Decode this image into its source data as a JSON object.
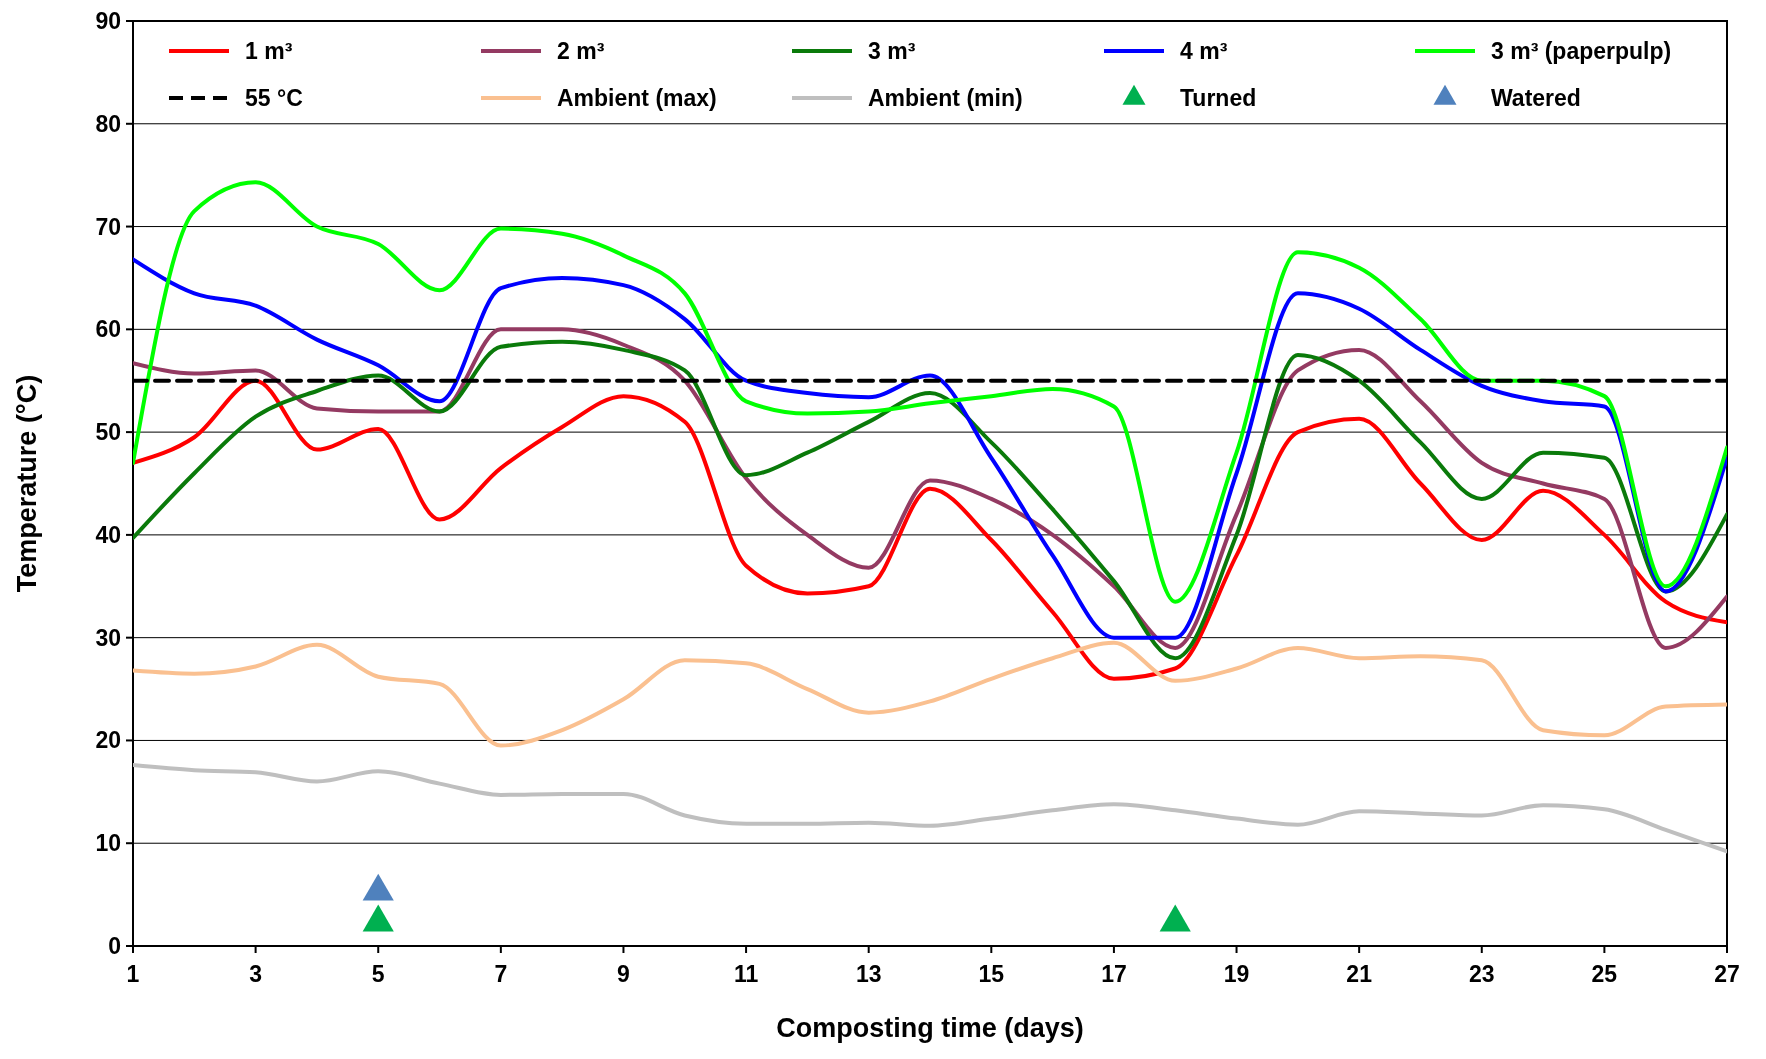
{
  "chart_data": {
    "type": "line",
    "xlabel": "Composting time (days)",
    "ylabel": "Temperature (°C)",
    "x": [
      1,
      2,
      3,
      4,
      5,
      6,
      7,
      8,
      9,
      10,
      11,
      12,
      13,
      14,
      15,
      16,
      17,
      18,
      19,
      20,
      21,
      22,
      23,
      24,
      25,
      26,
      27
    ],
    "xlim": [
      1,
      27
    ],
    "xticks": [
      1,
      3,
      5,
      7,
      9,
      11,
      13,
      15,
      17,
      19,
      21,
      23,
      25,
      27
    ],
    "ylim": [
      0,
      90
    ],
    "yticks": [
      0,
      10,
      20,
      30,
      40,
      50,
      60,
      70,
      80,
      90
    ],
    "grid": "y",
    "legend": "top",
    "series": [
      {
        "name": "1 m³",
        "color": "#ff0000",
        "values": [
          47,
          49.5,
          55,
          48.3,
          50.3,
          41.5,
          46.5,
          50.5,
          53.5,
          51,
          37,
          34.3,
          35,
          44.5,
          39.5,
          32.5,
          26,
          27,
          38,
          50,
          51.3,
          45,
          39.5,
          44.3,
          40,
          33.5,
          31.5
        ]
      },
      {
        "name": "2 m³",
        "color": "#943a62",
        "values": [
          56.7,
          55.7,
          56,
          52.3,
          52,
          52,
          60,
          60,
          58.5,
          55,
          45.5,
          40,
          36.8,
          45.3,
          43.5,
          40,
          35,
          29,
          42,
          56,
          58,
          53,
          47,
          45,
          43.5,
          29,
          34
        ]
      },
      {
        "name": "3 m³",
        "color": "#0a7a0a",
        "values": [
          39.7,
          46,
          51.5,
          54,
          55.5,
          52,
          58.3,
          58.8,
          58,
          56,
          45.8,
          48,
          51,
          53.8,
          49,
          42.5,
          35.5,
          28,
          40,
          57.5,
          55,
          49,
          43.5,
          48,
          47.5,
          34.5,
          42
        ]
      },
      {
        "name": "4 m³",
        "color": "#0000ff",
        "values": [
          66.8,
          63.5,
          62.3,
          59,
          56.5,
          53,
          64,
          65,
          64.3,
          61,
          55,
          53.8,
          53.4,
          55.5,
          47.5,
          38,
          30,
          30,
          46,
          63.5,
          62,
          58,
          54.5,
          53,
          52.5,
          34.5,
          47.5
        ]
      },
      {
        "name": "3 m³ (paperpulp)",
        "color": "#00ff00",
        "values": [
          47,
          71.5,
          74.3,
          70,
          68.3,
          63.8,
          69.8,
          69.3,
          67.2,
          63.5,
          53,
          51.8,
          52,
          52.8,
          53.5,
          54.2,
          52.5,
          33.5,
          48,
          67.5,
          66,
          61,
          55,
          55,
          53.5,
          35,
          48.5
        ]
      },
      {
        "name": "55 °C",
        "color": "#000000",
        "line_style": "dashed",
        "x": [
          1,
          27
        ],
        "values": [
          55,
          55
        ]
      },
      {
        "name": "Ambient (max)",
        "color": "#fac090",
        "values": [
          26.8,
          26.5,
          27.2,
          29.3,
          26.2,
          25.5,
          19.5,
          21,
          24,
          27.8,
          27.5,
          25,
          22.7,
          23.8,
          26,
          28,
          29.5,
          25.8,
          27,
          29,
          28,
          28.2,
          27.8,
          21,
          20.5,
          23.3,
          23.5
        ]
      },
      {
        "name": "Ambient (min)",
        "color": "#bfbfbf",
        "values": [
          17.6,
          17.1,
          16.9,
          16,
          17,
          15.8,
          14.7,
          14.8,
          14.8,
          12.7,
          11.9,
          11.9,
          12,
          11.7,
          12.4,
          13.2,
          13.8,
          13.2,
          12.4,
          11.8,
          13.1,
          12.9,
          12.7,
          13.7,
          13.3,
          11.3,
          9.2
        ]
      },
      {
        "name": "Turned",
        "type": "scatter",
        "marker": "triangle",
        "color": "#00b050",
        "x": [
          5,
          18
        ],
        "values": [
          2,
          2
        ]
      },
      {
        "name": "Watered",
        "type": "scatter",
        "marker": "triangle",
        "color": "#4f81bd",
        "x": [
          5
        ],
        "values": [
          5
        ]
      }
    ]
  }
}
